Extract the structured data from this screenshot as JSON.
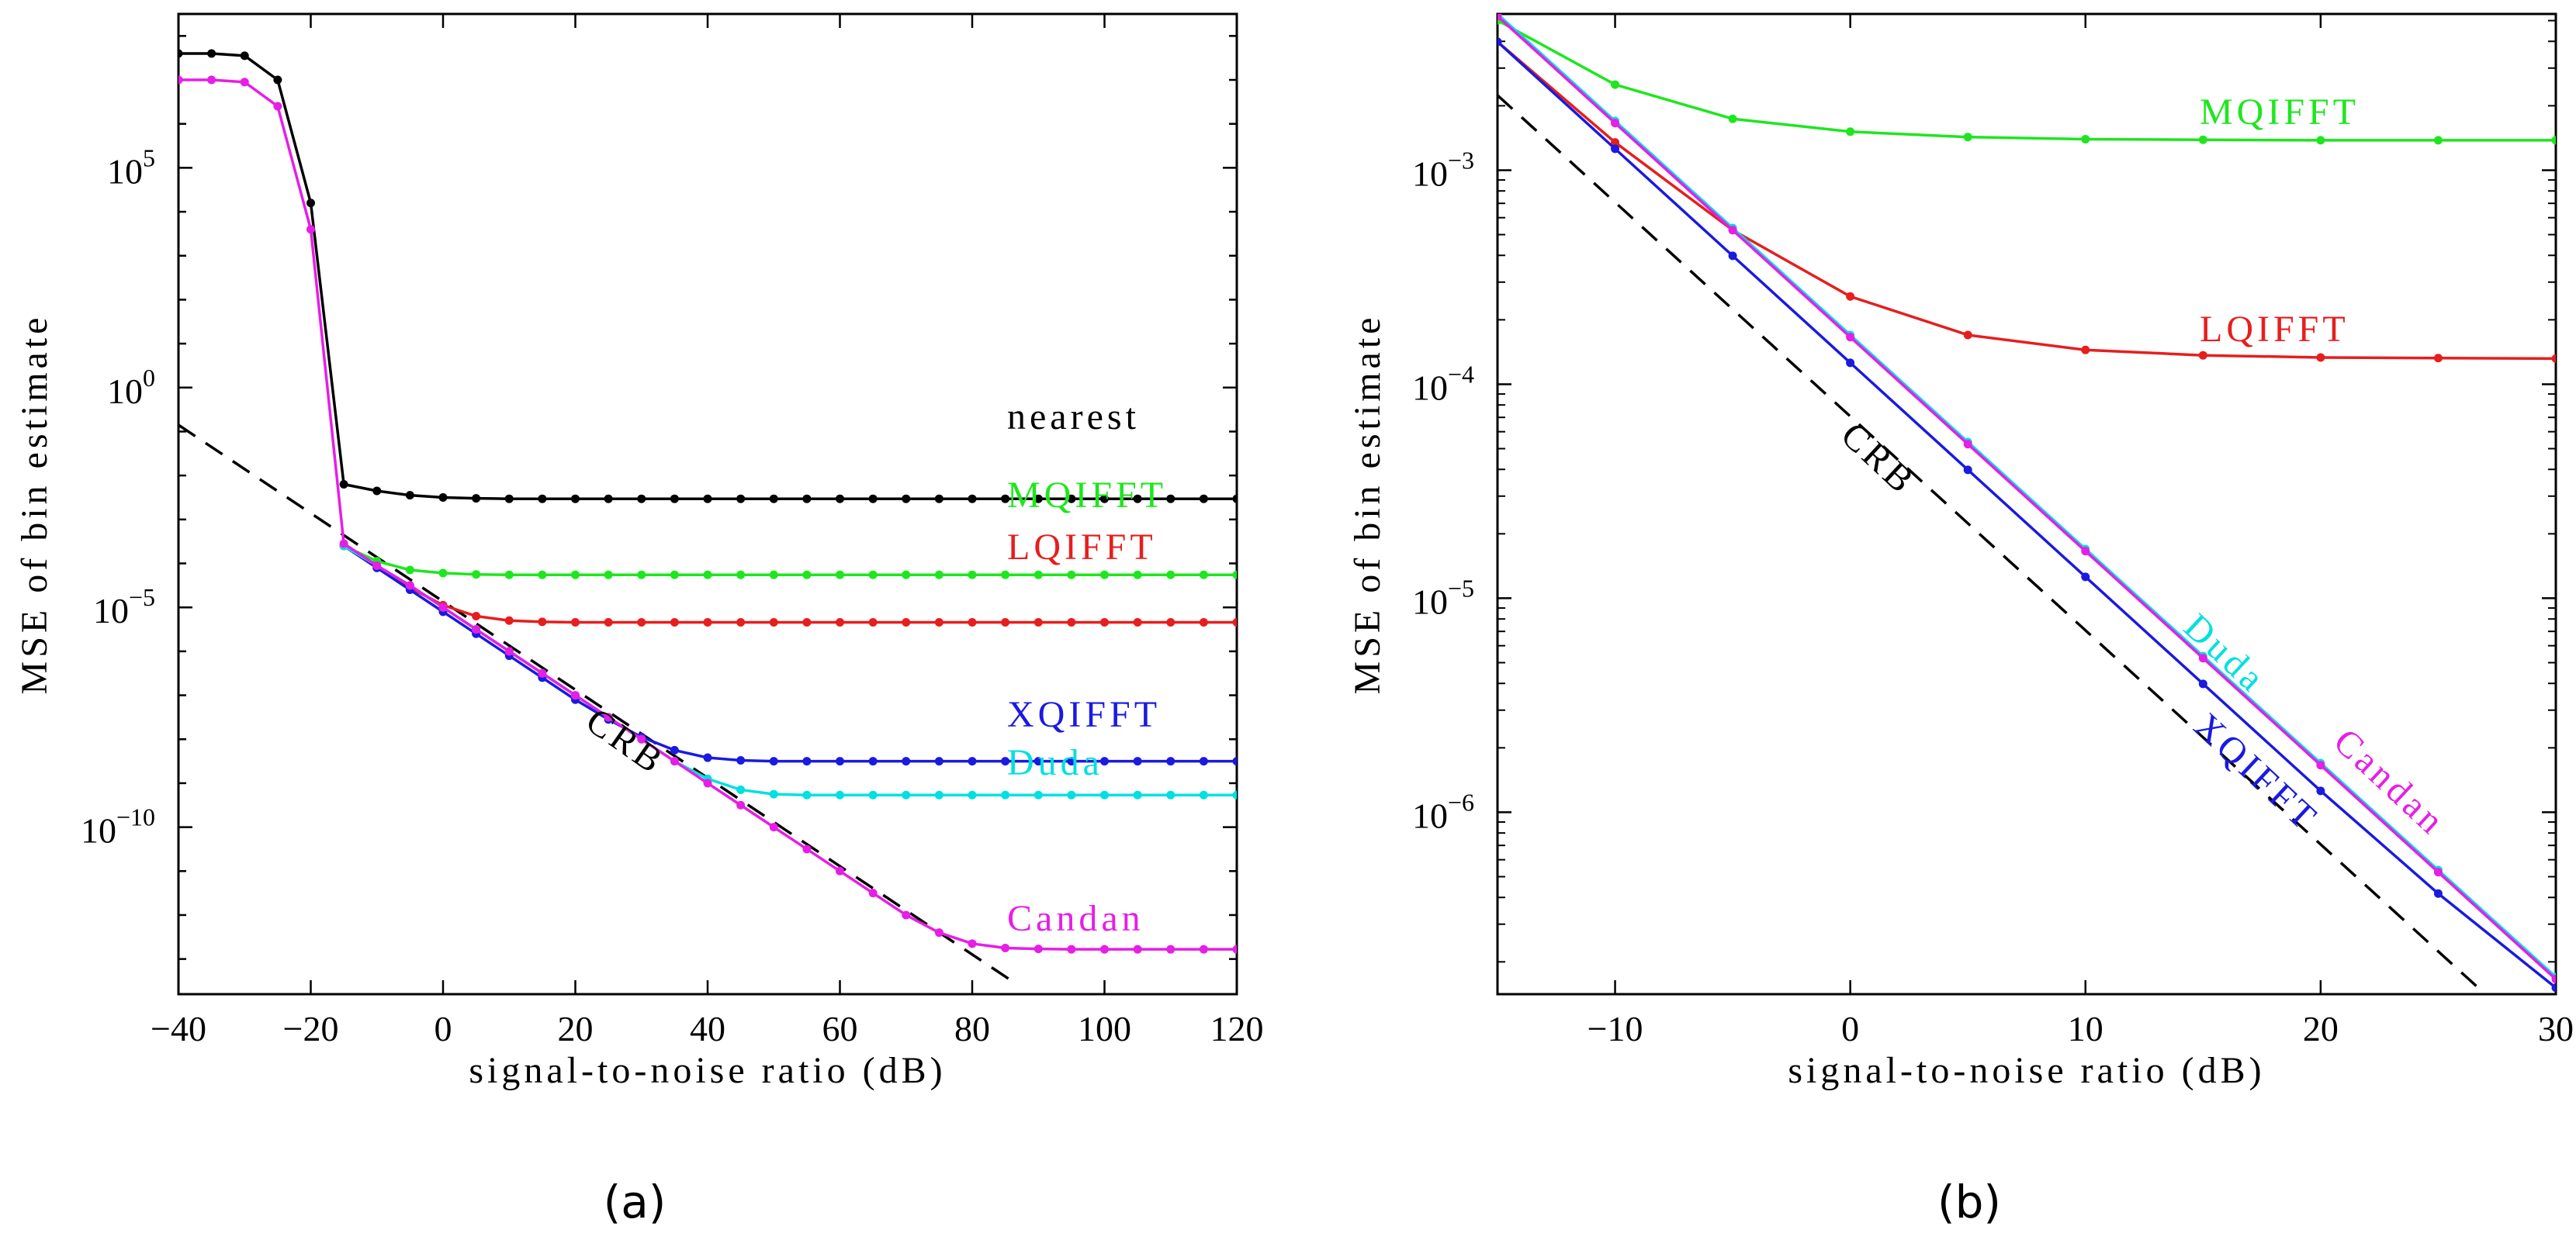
{
  "chart_data": [
    {
      "type": "line",
      "panel_label": "(a)",
      "xlabel": "signal-to-noise ratio (dB)",
      "ylabel": "MSE of bin estimate",
      "yscale": "log",
      "xlim": [
        -40,
        120
      ],
      "ylim_log10": [
        -13.8,
        8.5
      ],
      "xticks": [
        -40,
        -20,
        0,
        20,
        40,
        60,
        80,
        100,
        120
      ],
      "xtick_labels": [
        "−40",
        "−20",
        "0",
        "20",
        "40",
        "60",
        "80",
        "100",
        "120"
      ],
      "yticks_log10": [
        5,
        0,
        -5,
        -10
      ],
      "ytick_labels": [
        {
          "base": "10",
          "exp": "5"
        },
        {
          "base": "10",
          "exp": "0"
        },
        {
          "base": "10",
          "exp": "−5"
        },
        {
          "base": "10",
          "exp": "−10"
        }
      ],
      "crb": {
        "name": "CRB",
        "label": "CRB",
        "color": "#000000",
        "dashed": true,
        "x": [
          -40,
          87
        ],
        "log10_y": [
          -0.85,
          -13.6
        ]
      },
      "series": [
        {
          "name": "nearest",
          "label": "nearest",
          "color": "#000000",
          "x": [
            -40,
            -35,
            -30,
            -25,
            -20,
            -15,
            -10,
            -5,
            0,
            5,
            10,
            15,
            20,
            25,
            30,
            35,
            40,
            45,
            50,
            55,
            60,
            65,
            70,
            75,
            80,
            85,
            90,
            95,
            100,
            105,
            110,
            115,
            120
          ],
          "log10_y": [
            7.6,
            7.6,
            7.55,
            7.0,
            4.2,
            -2.2,
            -2.35,
            -2.45,
            -2.5,
            -2.52,
            -2.53,
            -2.53,
            -2.53,
            -2.53,
            -2.53,
            -2.53,
            -2.53,
            -2.53,
            -2.53,
            -2.53,
            -2.53,
            -2.53,
            -2.53,
            -2.53,
            -2.53,
            -2.53,
            -2.53,
            -2.53,
            -2.53,
            -2.53,
            -2.53,
            -2.53,
            -2.53
          ]
        },
        {
          "name": "MQIFFT",
          "label": "MQIFFT",
          "color": "#1ee61e",
          "x": [
            -15,
            -10,
            -5,
            0,
            5,
            10,
            15,
            20,
            25,
            30,
            35,
            40,
            45,
            50,
            55,
            60,
            65,
            70,
            75,
            80,
            85,
            90,
            95,
            100,
            105,
            110,
            115,
            120
          ],
          "log10_y": [
            -3.6,
            -3.95,
            -4.15,
            -4.22,
            -4.25,
            -4.26,
            -4.26,
            -4.26,
            -4.26,
            -4.26,
            -4.26,
            -4.26,
            -4.26,
            -4.26,
            -4.26,
            -4.26,
            -4.26,
            -4.26,
            -4.26,
            -4.26,
            -4.26,
            -4.26,
            -4.26,
            -4.26,
            -4.26,
            -4.26,
            -4.26,
            -4.26
          ]
        },
        {
          "name": "LQIFFT",
          "label": "LQIFFT",
          "color": "#e61e1e",
          "x": [
            -15,
            -10,
            -5,
            0,
            5,
            10,
            15,
            20,
            25,
            30,
            35,
            40,
            45,
            50,
            55,
            60,
            65,
            70,
            75,
            80,
            85,
            90,
            95,
            100,
            105,
            110,
            115,
            120
          ],
          "log10_y": [
            -3.6,
            -4.1,
            -4.55,
            -4.95,
            -5.2,
            -5.3,
            -5.33,
            -5.34,
            -5.34,
            -5.34,
            -5.34,
            -5.34,
            -5.34,
            -5.34,
            -5.34,
            -5.34,
            -5.34,
            -5.34,
            -5.34,
            -5.34,
            -5.34,
            -5.34,
            -5.34,
            -5.34,
            -5.34,
            -5.34,
            -5.34,
            -5.34
          ]
        },
        {
          "name": "XQIFFT",
          "label": "XQIFFT",
          "color": "#1a1ae0",
          "x": [
            -15,
            -10,
            -5,
            0,
            5,
            10,
            15,
            20,
            25,
            30,
            35,
            40,
            45,
            50,
            55,
            60,
            65,
            70,
            75,
            80,
            85,
            90,
            95,
            100,
            105,
            110,
            115,
            120
          ],
          "log10_y": [
            -3.6,
            -4.1,
            -4.6,
            -5.1,
            -5.6,
            -6.1,
            -6.6,
            -7.1,
            -7.55,
            -7.95,
            -8.25,
            -8.42,
            -8.48,
            -8.5,
            -8.5,
            -8.5,
            -8.5,
            -8.5,
            -8.5,
            -8.5,
            -8.5,
            -8.5,
            -8.5,
            -8.5,
            -8.5,
            -8.5,
            -8.5,
            -8.5
          ]
        },
        {
          "name": "Duda",
          "label": "Duda",
          "color": "#00e0e0",
          "x": [
            -15,
            -10,
            -5,
            0,
            5,
            10,
            15,
            20,
            25,
            30,
            35,
            40,
            45,
            50,
            55,
            60,
            65,
            70,
            75,
            80,
            85,
            90,
            95,
            100,
            105,
            110,
            115,
            120
          ],
          "log10_y": [
            -3.6,
            -4.05,
            -4.5,
            -5.0,
            -5.5,
            -6.0,
            -6.5,
            -7.0,
            -7.5,
            -8.0,
            -8.5,
            -8.9,
            -9.15,
            -9.25,
            -9.27,
            -9.27,
            -9.27,
            -9.27,
            -9.27,
            -9.27,
            -9.27,
            -9.27,
            -9.27,
            -9.27,
            -9.27,
            -9.27,
            -9.27,
            -9.27
          ]
        },
        {
          "name": "Candan",
          "label": "Candan",
          "color": "#e61ee6",
          "x": [
            -40,
            -35,
            -30,
            -25,
            -20,
            -15,
            -10,
            -5,
            0,
            5,
            10,
            15,
            20,
            25,
            30,
            35,
            40,
            45,
            50,
            55,
            60,
            65,
            70,
            75,
            80,
            85,
            90,
            95,
            100,
            105,
            110,
            115,
            120
          ],
          "log10_y": [
            7.0,
            7.0,
            6.95,
            6.4,
            3.6,
            -3.55,
            -4.05,
            -4.5,
            -5.0,
            -5.5,
            -6.0,
            -6.5,
            -7.0,
            -7.5,
            -8.0,
            -8.5,
            -9.0,
            -9.5,
            -10.0,
            -10.5,
            -11.0,
            -11.5,
            -12.0,
            -12.4,
            -12.65,
            -12.75,
            -12.77,
            -12.78,
            -12.78,
            -12.78,
            -12.78,
            -12.78,
            -12.78
          ]
        }
      ]
    },
    {
      "type": "line",
      "panel_label": "(b)",
      "xlabel": "signal-to-noise ratio (dB)",
      "ylabel": "MSE of bin estimate",
      "yscale": "log",
      "xlim": [
        -15,
        30
      ],
      "ylim_log10": [
        -6.85,
        -2.27
      ],
      "xticks": [
        -10,
        0,
        10,
        20,
        30
      ],
      "xtick_labels": [
        "−10",
        "0",
        "10",
        "20",
        "30"
      ],
      "yticks_log10": [
        -3,
        -4,
        -5,
        -6
      ],
      "ytick_labels": [
        {
          "base": "10",
          "exp": "−3"
        },
        {
          "base": "10",
          "exp": "−4"
        },
        {
          "base": "10",
          "exp": "−5"
        },
        {
          "base": "10",
          "exp": "−6"
        }
      ],
      "crb": {
        "name": "CRB",
        "label": "CRB",
        "color": "#000000",
        "dashed": true,
        "x": [
          -15,
          27
        ],
        "log10_y": [
          -2.65,
          -6.85
        ]
      },
      "series": [
        {
          "name": "MQIFFT",
          "label": "MQIFFT",
          "color": "#1ee61e",
          "x": [
            -15,
            -10,
            -5,
            0,
            5,
            10,
            15,
            20,
            25,
            30
          ],
          "log10_y": [
            -2.3,
            -2.6,
            -2.76,
            -2.82,
            -2.845,
            -2.855,
            -2.858,
            -2.86,
            -2.86,
            -2.86
          ]
        },
        {
          "name": "LQIFFT",
          "label": "LQIFFT",
          "color": "#e61e1e",
          "x": [
            -15,
            -10,
            -5,
            0,
            5,
            10,
            15,
            20,
            25,
            30
          ],
          "log10_y": [
            -2.4,
            -2.87,
            -3.28,
            -3.59,
            -3.77,
            -3.84,
            -3.865,
            -3.875,
            -3.878,
            -3.88
          ]
        },
        {
          "name": "XQIFFT",
          "label": "XQIFFT",
          "color": "#1a1ae0",
          "x": [
            -15,
            -10,
            -5,
            0,
            5,
            10,
            15,
            20,
            25,
            30
          ],
          "log10_y": [
            -2.4,
            -2.9,
            -3.4,
            -3.9,
            -4.4,
            -4.9,
            -5.4,
            -5.9,
            -6.38,
            -6.82
          ]
        },
        {
          "name": "Duda",
          "label": "Duda",
          "color": "#00e0e0",
          "x": [
            -15,
            -10,
            -5,
            0,
            5,
            10,
            15,
            20,
            25,
            30
          ],
          "log10_y": [
            -2.27,
            -2.77,
            -3.27,
            -3.77,
            -4.27,
            -4.77,
            -5.27,
            -5.77,
            -6.27,
            -6.77
          ]
        },
        {
          "name": "Candan",
          "label": "Candan",
          "color": "#e61ee6",
          "x": [
            -15,
            -10,
            -5,
            0,
            5,
            10,
            15,
            20,
            25,
            30
          ],
          "log10_y": [
            -2.28,
            -2.78,
            -3.28,
            -3.78,
            -4.28,
            -4.78,
            -5.28,
            -5.78,
            -6.28,
            -6.78
          ]
        }
      ]
    }
  ]
}
